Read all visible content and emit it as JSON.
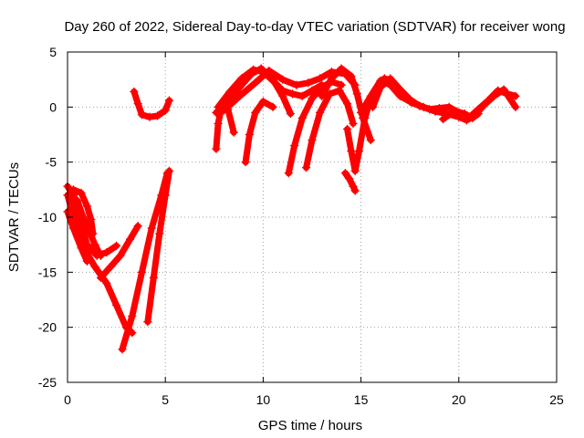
{
  "chart_data": {
    "type": "scatter",
    "title": "Day 260 of 2022, Sidereal Day-to-day VTEC variation (SDTVAR) for receiver wong",
    "xlabel": "GPS time / hours",
    "ylabel": "SDTVAR / TECUs",
    "xlim": [
      0,
      25
    ],
    "ylim": [
      -25,
      5
    ],
    "xticks": [
      0,
      5,
      10,
      15,
      20,
      25
    ],
    "yticks": [
      -25,
      -20,
      -15,
      -10,
      -5,
      0,
      5
    ],
    "grid": true,
    "marker": "+",
    "series_color": "#ff0000",
    "series": [
      {
        "name": "arc-1",
        "x": [
          0.0,
          0.3,
          0.6,
          1.0,
          1.5,
          2.0,
          2.5
        ],
        "y": [
          -7.2,
          -8.0,
          -10.0,
          -12.5,
          -13.5,
          -13.2,
          -12.6
        ]
      },
      {
        "name": "arc-2",
        "x": [
          0.0,
          0.4,
          0.9,
          1.4,
          2.0,
          2.5,
          3.0,
          3.3
        ],
        "y": [
          -8.0,
          -10.5,
          -13.0,
          -14.5,
          -16.0,
          -18.0,
          -20.0,
          -20.5
        ]
      },
      {
        "name": "arc-3",
        "x": [
          0.2,
          0.5,
          0.8,
          1.1,
          1.4,
          1.7
        ],
        "y": [
          -8.0,
          -8.5,
          -10.0,
          -11.2,
          -12.5,
          -13.5
        ]
      },
      {
        "name": "arc-4",
        "x": [
          0.3,
          0.7,
          1.0,
          1.2,
          1.3
        ],
        "y": [
          -7.5,
          -7.8,
          -9.0,
          -10.2,
          -11.5
        ]
      },
      {
        "name": "arc-5",
        "x": [
          0.0,
          0.3,
          0.7,
          1.0
        ],
        "y": [
          -9.5,
          -11.0,
          -12.8,
          -14.0
        ]
      },
      {
        "name": "arc-6",
        "x": [
          1.7,
          2.2,
          2.7,
          3.2,
          3.6
        ],
        "y": [
          -15.5,
          -14.5,
          -13.5,
          -12.0,
          -10.8
        ]
      },
      {
        "name": "arc-7",
        "x": [
          2.8,
          3.3,
          3.8,
          4.3,
          4.8,
          5.1
        ],
        "y": [
          -22.0,
          -19.0,
          -15.0,
          -11.0,
          -8.0,
          -6.0
        ]
      },
      {
        "name": "arc-8",
        "x": [
          4.1,
          4.4,
          4.7,
          5.0,
          5.2
        ],
        "y": [
          -19.5,
          -15.5,
          -11.5,
          -8.0,
          -5.8
        ]
      },
      {
        "name": "arc-9",
        "x": [
          3.4,
          3.6,
          3.8,
          4.2,
          4.6,
          5.0,
          5.2
        ],
        "y": [
          1.4,
          0.3,
          -0.7,
          -0.9,
          -0.8,
          -0.3,
          0.6
        ]
      },
      {
        "name": "arc-10",
        "x": [
          7.6,
          7.7,
          7.9,
          8.2,
          8.5
        ],
        "y": [
          -3.8,
          -1.5,
          0.3,
          -0.2,
          -2.3
        ]
      },
      {
        "name": "arc-11",
        "x": [
          7.6,
          8.2,
          8.8,
          9.4,
          9.9,
          10.5,
          11.0,
          11.4
        ],
        "y": [
          -0.5,
          0.5,
          1.8,
          3.0,
          3.5,
          2.5,
          1.0,
          -0.6
        ]
      },
      {
        "name": "arc-12",
        "x": [
          7.7,
          8.3,
          8.9,
          9.5,
          10.0,
          10.5,
          11.0,
          11.5,
          12.0,
          12.5,
          13.0
        ],
        "y": [
          0.0,
          1.4,
          2.6,
          3.4,
          3.2,
          2.4,
          1.5,
          1.2,
          1.0,
          1.5,
          2.0
        ]
      },
      {
        "name": "arc-13",
        "x": [
          9.1,
          9.3,
          9.6,
          10.0,
          10.5
        ],
        "y": [
          -5.0,
          -2.5,
          -0.5,
          0.5,
          0.0
        ]
      },
      {
        "name": "arc-14",
        "x": [
          8.0,
          8.8,
          9.6,
          10.3,
          11.0,
          11.7,
          12.3,
          12.9,
          13.5,
          14.2,
          14.7
        ],
        "y": [
          -0.3,
          1.0,
          2.2,
          3.3,
          2.5,
          2.0,
          2.2,
          2.6,
          3.2,
          3.0,
          2.0
        ]
      },
      {
        "name": "arc-15",
        "x": [
          11.3,
          11.6,
          12.0,
          12.5,
          13.0,
          13.5,
          14.0
        ],
        "y": [
          -6.0,
          -3.5,
          -1.0,
          0.8,
          1.8,
          2.3,
          2.0
        ]
      },
      {
        "name": "arc-16",
        "x": [
          12.2,
          12.5,
          12.9,
          13.4,
          13.9,
          14.3,
          14.6
        ],
        "y": [
          -5.5,
          -3.0,
          -0.5,
          1.2,
          1.5,
          0.3,
          -1.5
        ]
      },
      {
        "name": "arc-17",
        "x": [
          13.0,
          13.5,
          14.0,
          14.5,
          14.8,
          15.1,
          15.5
        ],
        "y": [
          1.0,
          2.6,
          3.5,
          2.8,
          1.2,
          -1.0,
          -3.0
        ]
      },
      {
        "name": "arc-18",
        "x": [
          14.2,
          14.4,
          14.6,
          14.7
        ],
        "y": [
          -6.0,
          -6.5,
          -7.2,
          -7.6
        ]
      },
      {
        "name": "arc-19",
        "x": [
          14.3,
          14.5,
          14.7,
          14.9,
          15.2,
          15.5,
          15.9,
          16.2,
          16.6,
          17.0,
          17.5,
          18.0
        ],
        "y": [
          -2.0,
          -4.0,
          -5.8,
          -4.0,
          -1.0,
          0.8,
          2.0,
          2.6,
          2.4,
          1.6,
          0.7,
          0.1
        ]
      },
      {
        "name": "arc-20",
        "x": [
          15.0,
          15.5,
          16.0,
          16.5,
          17.0,
          17.5,
          18.0,
          18.5,
          19.0,
          19.5,
          20.0,
          20.5,
          21.0,
          21.5,
          22.0,
          22.5,
          22.9
        ],
        "y": [
          -0.5,
          1.0,
          2.4,
          2.0,
          1.0,
          0.5,
          0.1,
          -0.2,
          -0.1,
          0.0,
          -0.5,
          -1.0,
          -0.2,
          0.6,
          1.5,
          1.2,
          1.0
        ]
      },
      {
        "name": "arc-21",
        "x": [
          15.6,
          16.0,
          16.5,
          17.0,
          17.6,
          18.2,
          18.8,
          19.4,
          20.0,
          20.4,
          20.8,
          21.3,
          21.8,
          22.3,
          22.9
        ],
        "y": [
          0.0,
          1.8,
          2.6,
          1.4,
          0.4,
          0.0,
          -0.4,
          -0.6,
          -0.9,
          -1.2,
          -0.8,
          0.2,
          1.0,
          1.6,
          0.0
        ]
      },
      {
        "name": "arc-22",
        "x": [
          19.2,
          19.5,
          19.9,
          20.3,
          20.7,
          21.0
        ],
        "y": [
          -1.1,
          -0.7,
          -0.4,
          -0.6,
          -1.0,
          -0.6
        ]
      }
    ]
  }
}
